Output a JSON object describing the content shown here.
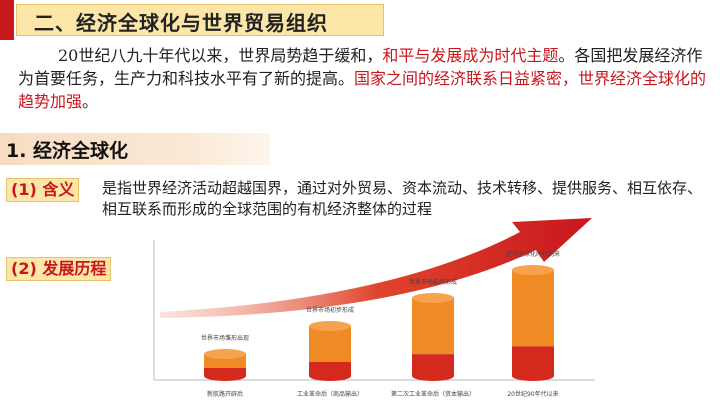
{
  "title": "二、经济全球化与世界贸易组织",
  "intro": {
    "part1": "20世纪八九十年代以来，世界局势趋于缓和，",
    "part2": "和平与发展成为时代主题",
    "part3": "。各国把发展经济作为首要任务，生产力和科技水平有了新的提高。",
    "part4": "国家之间的经济联系日益紧密，世界经济全球化的趋势加强",
    "part5": "。"
  },
  "section": {
    "title": "1. 经济全球化"
  },
  "meaning": {
    "label": "(1) 含义",
    "text": "是指世界经济活动超越国界，通过对外贸易、资本流动、技术转移、提供服务、相互依存、相互联系而形成的全球范围的有机经济整体的过程"
  },
  "history": {
    "label": "(2) 发展历程"
  },
  "colors": {
    "accent_red": "#c8161d",
    "tag_bg": "#fde7a8",
    "cylinder_orange": "#f08a25",
    "cylinder_red": "#d42a1e"
  },
  "chart_data": {
    "type": "bar",
    "categories": [
      "新航路开辟后",
      "工业革命后（商品输出）",
      "第二次工业革命后（资本输出）",
      "20世纪90年代以来"
    ],
    "annotations": [
      "世界市场雏形出现",
      "世界市场初步形成",
      "世界市场最终形成",
      "经济全球化时代到来"
    ],
    "values": [
      1,
      2,
      3,
      4
    ]
  }
}
